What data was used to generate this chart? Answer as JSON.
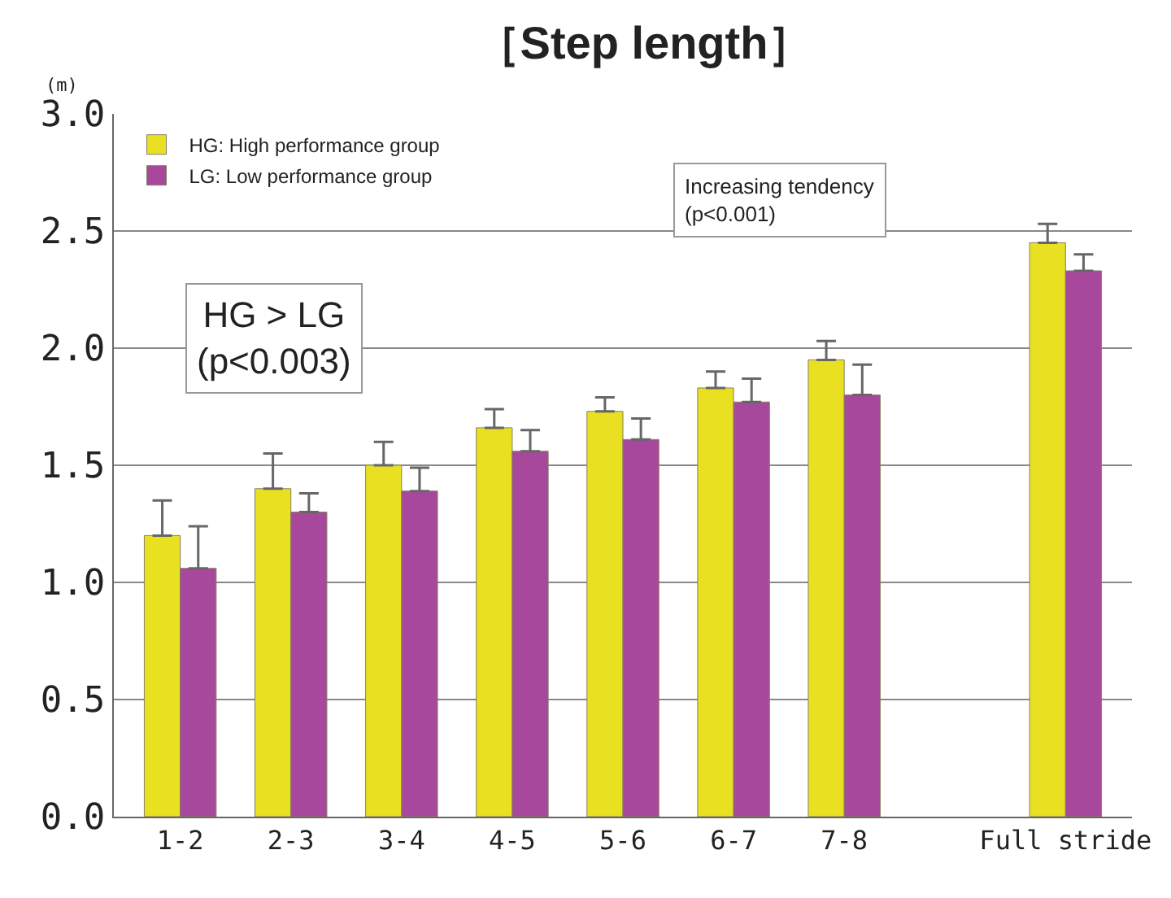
{
  "chart_data": {
    "type": "bar",
    "title": "［Step length］",
    "ylabel": "(m)",
    "categories": [
      "1-2",
      "2-3",
      "3-4",
      "4-5",
      "5-6",
      "6-7",
      "7-8",
      null,
      "Full stride"
    ],
    "series": [
      {
        "name": "HG: High performance group",
        "color": "#e8e020",
        "values": [
          1.2,
          1.4,
          1.5,
          1.66,
          1.73,
          1.83,
          1.95,
          null,
          2.45
        ],
        "errors": [
          [
            1.2,
            1.35
          ],
          [
            1.4,
            1.55
          ],
          [
            1.5,
            1.6
          ],
          [
            1.66,
            1.74
          ],
          [
            1.73,
            1.79
          ],
          [
            1.83,
            1.9
          ],
          [
            1.95,
            2.03
          ],
          null,
          [
            2.45,
            2.53
          ]
        ]
      },
      {
        "name": "LG: Low performance group",
        "color": "#a8489c",
        "values": [
          1.06,
          1.3,
          1.39,
          1.56,
          1.61,
          1.77,
          1.8,
          null,
          2.33
        ],
        "errors": [
          [
            1.06,
            1.24
          ],
          [
            1.3,
            1.38
          ],
          [
            1.39,
            1.49
          ],
          [
            1.56,
            1.65
          ],
          [
            1.61,
            1.7
          ],
          [
            1.77,
            1.87
          ],
          [
            1.8,
            1.93
          ],
          null,
          [
            2.33,
            2.4
          ]
        ]
      }
    ],
    "ylim": [
      0,
      3.0
    ],
    "yticks": [
      {
        "value": 0,
        "label": "0.0"
      },
      {
        "value": 0.5,
        "label": "0.5"
      },
      {
        "value": 1.0,
        "label": "1.0"
      },
      {
        "value": 1.5,
        "label": "1.5"
      },
      {
        "value": 2.0,
        "label": "2.0"
      },
      {
        "value": 2.5,
        "label": "2.5"
      },
      {
        "value": 3.0,
        "label": "3.0"
      }
    ],
    "grid": "y",
    "legend": "top left",
    "annotations": [
      "HG > LG\n(p<0.003)",
      "Increasing tendency\n(p<0.001)"
    ]
  }
}
